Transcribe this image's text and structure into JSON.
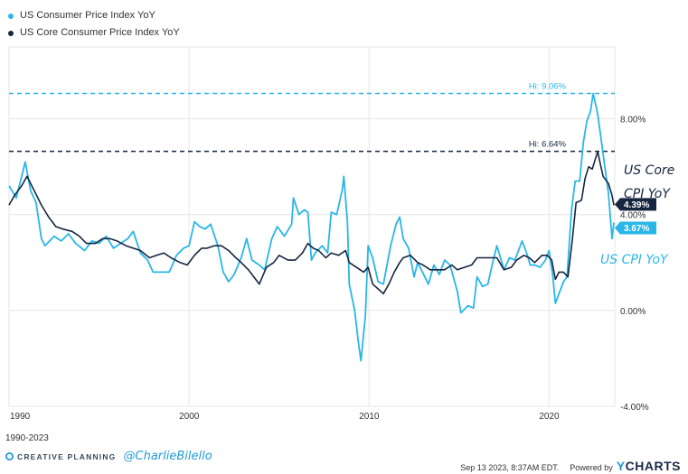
{
  "legend": {
    "cpi": "US Consumer Price Index YoY",
    "core": "US Core Consumer Price Index YoY"
  },
  "colors": {
    "cpi": "#29b6e8",
    "core": "#162540",
    "grid": "#e6e6e6"
  },
  "annotations": {
    "core_line1": "US Core",
    "core_line2": "CPI YoY",
    "cpi": "US CPI YoY"
  },
  "footer": {
    "period": "1990-2023",
    "brand": "CREATIVE PLANNING",
    "handle": "@CharlieBilello",
    "timestamp": "Sep 13 2023, 8:37AM EDT.",
    "powered_by": "Powered by",
    "ycharts_y": "Y",
    "ycharts_rest": "CHARTS"
  },
  "chart_data": {
    "type": "line",
    "xlim": [
      1990.0,
      2023.65
    ],
    "ylim": [
      -4.0,
      11.0
    ],
    "x_ticks": [
      1990,
      2000,
      2010,
      2020
    ],
    "x_tick_labels": [
      "1990",
      "2000",
      "2010",
      "2020"
    ],
    "y_ticks": [
      -4,
      0,
      4,
      8
    ],
    "y_tick_labels": [
      "-4.00%",
      "0.00%",
      "4.00%",
      "8.00%"
    ],
    "grid": true,
    "reference_lines": [
      {
        "label": "Hi: 9.06%",
        "value": 9.06,
        "series": "cpi"
      },
      {
        "label": "Hi: 6.64%",
        "value": 6.64,
        "series": "core"
      }
    ],
    "end_labels": [
      {
        "label": "4.39%",
        "value": 4.39,
        "series": "core"
      },
      {
        "label": "3.67%",
        "value": 3.67,
        "series": "cpi"
      }
    ],
    "series": [
      {
        "name": "US Consumer Price Index YoY",
        "key": "cpi",
        "points": [
          [
            1990.0,
            5.2
          ],
          [
            1990.4,
            4.7
          ],
          [
            1990.9,
            6.2
          ],
          [
            1991.2,
            5.0
          ],
          [
            1991.5,
            4.5
          ],
          [
            1991.8,
            3.0
          ],
          [
            1992.0,
            2.7
          ],
          [
            1992.5,
            3.1
          ],
          [
            1992.9,
            2.9
          ],
          [
            1993.3,
            3.2
          ],
          [
            1993.7,
            2.8
          ],
          [
            1994.2,
            2.5
          ],
          [
            1994.6,
            2.9
          ],
          [
            1995.0,
            2.8
          ],
          [
            1995.4,
            3.1
          ],
          [
            1995.8,
            2.6
          ],
          [
            1996.2,
            2.8
          ],
          [
            1996.6,
            3.0
          ],
          [
            1996.9,
            3.3
          ],
          [
            1997.3,
            2.4
          ],
          [
            1997.7,
            2.1
          ],
          [
            1998.0,
            1.6
          ],
          [
            1998.5,
            1.6
          ],
          [
            1998.9,
            1.6
          ],
          [
            1999.3,
            2.3
          ],
          [
            1999.7,
            2.6
          ],
          [
            2000.0,
            2.7
          ],
          [
            2000.3,
            3.7
          ],
          [
            2000.6,
            3.5
          ],
          [
            2000.9,
            3.4
          ],
          [
            2001.2,
            3.6
          ],
          [
            2001.6,
            2.7
          ],
          [
            2001.9,
            1.6
          ],
          [
            2002.2,
            1.2
          ],
          [
            2002.5,
            1.5
          ],
          [
            2002.9,
            2.2
          ],
          [
            2003.2,
            3.0
          ],
          [
            2003.5,
            2.1
          ],
          [
            2003.9,
            1.9
          ],
          [
            2004.2,
            1.7
          ],
          [
            2004.6,
            3.0
          ],
          [
            2004.9,
            3.5
          ],
          [
            2005.3,
            3.1
          ],
          [
            2005.7,
            3.6
          ],
          [
            2005.8,
            4.7
          ],
          [
            2006.1,
            4.0
          ],
          [
            2006.4,
            4.2
          ],
          [
            2006.6,
            4.1
          ],
          [
            2006.8,
            2.1
          ],
          [
            2007.0,
            2.4
          ],
          [
            2007.4,
            2.7
          ],
          [
            2007.7,
            2.4
          ],
          [
            2007.9,
            4.1
          ],
          [
            2008.2,
            4.0
          ],
          [
            2008.5,
            5.0
          ],
          [
            2008.6,
            5.6
          ],
          [
            2008.8,
            3.7
          ],
          [
            2008.9,
            1.1
          ],
          [
            2009.2,
            0.0
          ],
          [
            2009.4,
            -1.3
          ],
          [
            2009.55,
            -2.1
          ],
          [
            2009.8,
            -0.2
          ],
          [
            2009.95,
            2.7
          ],
          [
            2010.2,
            2.2
          ],
          [
            2010.5,
            1.2
          ],
          [
            2010.8,
            1.1
          ],
          [
            2011.2,
            2.7
          ],
          [
            2011.5,
            3.6
          ],
          [
            2011.7,
            3.9
          ],
          [
            2011.9,
            3.0
          ],
          [
            2012.2,
            2.6
          ],
          [
            2012.5,
            1.4
          ],
          [
            2012.7,
            2.0
          ],
          [
            2012.9,
            1.7
          ],
          [
            2013.3,
            1.1
          ],
          [
            2013.6,
            1.9
          ],
          [
            2013.9,
            1.5
          ],
          [
            2014.2,
            2.1
          ],
          [
            2014.5,
            1.9
          ],
          [
            2014.9,
            0.8
          ],
          [
            2015.1,
            -0.1
          ],
          [
            2015.5,
            0.2
          ],
          [
            2015.8,
            0.1
          ],
          [
            2016.0,
            1.4
          ],
          [
            2016.3,
            1.0
          ],
          [
            2016.6,
            1.1
          ],
          [
            2016.9,
            2.1
          ],
          [
            2017.1,
            2.7
          ],
          [
            2017.5,
            1.7
          ],
          [
            2017.8,
            2.2
          ],
          [
            2018.1,
            2.1
          ],
          [
            2018.5,
            2.9
          ],
          [
            2018.8,
            2.3
          ],
          [
            2018.95,
            1.9
          ],
          [
            2019.2,
            1.9
          ],
          [
            2019.5,
            1.8
          ],
          [
            2019.8,
            2.1
          ],
          [
            2020.0,
            2.5
          ],
          [
            2020.2,
            1.5
          ],
          [
            2020.35,
            0.3
          ],
          [
            2020.5,
            0.6
          ],
          [
            2020.8,
            1.2
          ],
          [
            2021.0,
            1.4
          ],
          [
            2021.25,
            4.2
          ],
          [
            2021.45,
            5.4
          ],
          [
            2021.7,
            5.4
          ],
          [
            2021.9,
            7.0
          ],
          [
            2022.1,
            7.9
          ],
          [
            2022.3,
            8.3
          ],
          [
            2022.45,
            9.06
          ],
          [
            2022.7,
            8.2
          ],
          [
            2022.9,
            7.1
          ],
          [
            2023.1,
            6.0
          ],
          [
            2023.3,
            4.9
          ],
          [
            2023.5,
            3.0
          ],
          [
            2023.6,
            3.67
          ]
        ]
      },
      {
        "name": "US Core Consumer Price Index YoY",
        "key": "core",
        "points": [
          [
            1990.0,
            4.4
          ],
          [
            1990.3,
            4.8
          ],
          [
            1990.7,
            5.2
          ],
          [
            1991.0,
            5.6
          ],
          [
            1991.4,
            5.0
          ],
          [
            1991.8,
            4.4
          ],
          [
            1992.2,
            3.9
          ],
          [
            1992.6,
            3.5
          ],
          [
            1993.0,
            3.4
          ],
          [
            1993.5,
            3.3
          ],
          [
            1993.9,
            3.1
          ],
          [
            1994.3,
            2.8
          ],
          [
            1994.8,
            2.8
          ],
          [
            1995.2,
            3.0
          ],
          [
            1995.6,
            3.0
          ],
          [
            1996.0,
            2.9
          ],
          [
            1996.5,
            2.7
          ],
          [
            1996.9,
            2.6
          ],
          [
            1997.3,
            2.5
          ],
          [
            1997.8,
            2.2
          ],
          [
            1998.2,
            2.3
          ],
          [
            1998.6,
            2.4
          ],
          [
            1999.0,
            2.2
          ],
          [
            1999.5,
            2.0
          ],
          [
            1999.9,
            1.9
          ],
          [
            2000.3,
            2.3
          ],
          [
            2000.7,
            2.6
          ],
          [
            2001.0,
            2.6
          ],
          [
            2001.4,
            2.7
          ],
          [
            2001.8,
            2.7
          ],
          [
            2002.2,
            2.5
          ],
          [
            2002.6,
            2.2
          ],
          [
            2002.9,
            2.0
          ],
          [
            2003.3,
            1.7
          ],
          [
            2003.7,
            1.3
          ],
          [
            2003.9,
            1.1
          ],
          [
            2004.3,
            1.8
          ],
          [
            2004.7,
            2.0
          ],
          [
            2005.0,
            2.3
          ],
          [
            2005.5,
            2.1
          ],
          [
            2005.9,
            2.1
          ],
          [
            2006.3,
            2.4
          ],
          [
            2006.6,
            2.8
          ],
          [
            2006.9,
            2.6
          ],
          [
            2007.2,
            2.5
          ],
          [
            2007.6,
            2.2
          ],
          [
            2007.9,
            2.4
          ],
          [
            2008.3,
            2.3
          ],
          [
            2008.7,
            2.5
          ],
          [
            2008.9,
            2.0
          ],
          [
            2009.3,
            1.8
          ],
          [
            2009.7,
            1.6
          ],
          [
            2009.95,
            1.8
          ],
          [
            2010.2,
            1.1
          ],
          [
            2010.5,
            0.9
          ],
          [
            2010.8,
            0.7
          ],
          [
            2011.1,
            1.1
          ],
          [
            2011.4,
            1.6
          ],
          [
            2011.7,
            2.0
          ],
          [
            2011.9,
            2.2
          ],
          [
            2012.3,
            2.3
          ],
          [
            2012.7,
            2.0
          ],
          [
            2013.0,
            1.9
          ],
          [
            2013.4,
            1.7
          ],
          [
            2013.8,
            1.7
          ],
          [
            2014.2,
            1.7
          ],
          [
            2014.6,
            1.9
          ],
          [
            2014.9,
            1.7
          ],
          [
            2015.3,
            1.8
          ],
          [
            2015.7,
            1.9
          ],
          [
            2016.0,
            2.2
          ],
          [
            2016.4,
            2.2
          ],
          [
            2016.8,
            2.2
          ],
          [
            2017.1,
            2.2
          ],
          [
            2017.5,
            1.7
          ],
          [
            2017.9,
            1.8
          ],
          [
            2018.2,
            2.1
          ],
          [
            2018.6,
            2.3
          ],
          [
            2018.9,
            2.2
          ],
          [
            2019.2,
            2.0
          ],
          [
            2019.6,
            2.3
          ],
          [
            2019.9,
            2.3
          ],
          [
            2020.15,
            2.1
          ],
          [
            2020.35,
            1.3
          ],
          [
            2020.55,
            1.6
          ],
          [
            2020.8,
            1.6
          ],
          [
            2021.05,
            1.4
          ],
          [
            2021.3,
            3.0
          ],
          [
            2021.5,
            4.5
          ],
          [
            2021.8,
            4.6
          ],
          [
            2022.0,
            5.5
          ],
          [
            2022.2,
            6.0
          ],
          [
            2022.4,
            5.9
          ],
          [
            2022.7,
            6.64
          ],
          [
            2022.85,
            6.1
          ],
          [
            2023.0,
            5.6
          ],
          [
            2023.3,
            5.3
          ],
          [
            2023.5,
            4.8
          ],
          [
            2023.6,
            4.39
          ]
        ]
      }
    ]
  }
}
